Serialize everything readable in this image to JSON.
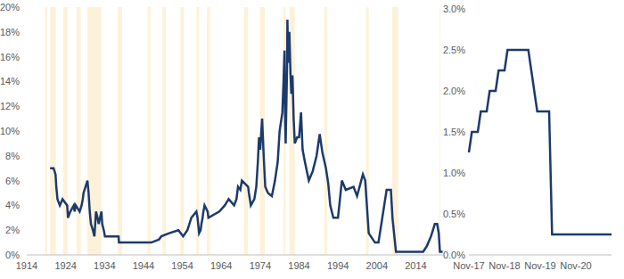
{
  "chart_data": [
    {
      "type": "line",
      "x": [
        1920.0,
        1920.9,
        1921.4,
        1921.6,
        1921.9,
        1922.5,
        1923.2,
        1924.4,
        1924.6,
        1925.2,
        1926.1,
        1926.3,
        1926.6,
        1927.6,
        1928.1,
        1928.4,
        1928.6,
        1929.6,
        1929.9,
        1930.0,
        1930.2,
        1930.5,
        1931.0,
        1931.4,
        1931.8,
        1932.2,
        1932.5,
        1933.2,
        1933.4,
        1933.8,
        1934.1,
        1937.6,
        1937.7,
        1946.0,
        1948.0,
        1948.6,
        1950.6,
        1953.0,
        1954.2,
        1955.3,
        1955.8,
        1956.3,
        1957.6,
        1957.9,
        1958.3,
        1958.7,
        1958.9,
        1959.2,
        1959.4,
        1959.7,
        1960.5,
        1960.7,
        1963.5,
        1964.9,
        1965.9,
        1967.3,
        1967.9,
        1968.3,
        1968.9,
        1969.3,
        1970.9,
        1971.1,
        1971.6,
        1972.5,
        1973.0,
        1973.4,
        1973.7,
        1974.0,
        1974.5,
        1974.9,
        1975.3,
        1976.0,
        1977.0,
        1977.8,
        1978.5,
        1979.0,
        1979.7,
        1980.0,
        1980.25,
        1980.4,
        1980.55,
        1980.9,
        1981.0,
        1981.2,
        1981.5,
        1981.8,
        1982.0,
        1982.3,
        1982.6,
        1982.9,
        1983.5,
        1984.0,
        1984.5,
        1984.9,
        1985.5,
        1986.5,
        1987.5,
        1988.5,
        1989.3,
        1990.0,
        1990.9,
        1991.5,
        1992.0,
        1992.8,
        1994.0,
        1995.0,
        1996.0,
        1998.0,
        1998.9,
        2000.4,
        2001.0,
        2001.9,
        2003.5,
        2004.4,
        2006.5,
        2007.6,
        2008.0,
        2008.9,
        2015.9,
        2016.9,
        2017.9,
        2018.9,
        2019.5,
        2019.9,
        2020.2,
        2020.9
      ],
      "values": [
        7,
        7,
        6.5,
        5.5,
        4.5,
        4,
        4.5,
        4,
        3,
        3.5,
        4,
        3.5,
        4,
        3.5,
        4,
        4.5,
        5,
        6,
        5,
        4.5,
        3.5,
        2.5,
        2,
        1.5,
        3.5,
        3,
        2.5,
        3.5,
        2.5,
        2,
        1.5,
        1.5,
        1,
        1,
        1.25,
        1.5,
        1.75,
        2,
        1.5,
        2,
        2.5,
        3,
        3.5,
        3,
        1.75,
        2,
        2.5,
        3,
        3.5,
        4,
        3.5,
        3,
        3.5,
        4,
        4.5,
        4,
        4.5,
        5.5,
        5.25,
        6,
        5.5,
        5,
        4,
        4.5,
        5.5,
        7.5,
        9.5,
        8.5,
        11,
        8,
        5.5,
        5,
        4.75,
        6,
        7.5,
        10,
        11.5,
        14,
        16.5,
        11,
        9,
        15,
        19,
        15.5,
        18,
        14.5,
        13,
        14.5,
        11,
        9,
        9.5,
        9.5,
        11.5,
        8.5,
        7.5,
        6,
        6.75,
        8,
        9.75,
        8.25,
        7,
        5.75,
        4,
        3,
        3,
        6,
        5.25,
        5.5,
        4.75,
        6.5,
        6,
        1.75,
        1,
        1,
        5.25,
        5.25,
        3,
        0.25,
        0.25,
        0.75,
        1.5,
        2.5,
        2.5,
        1.75,
        0.25,
        0.25
      ],
      "color": "#1c3a6b",
      "recessions": [
        [
          1918.7,
          1919.2
        ],
        [
          1920.0,
          1921.5
        ],
        [
          1923.4,
          1924.5
        ],
        [
          1926.8,
          1927.9
        ],
        [
          1929.6,
          1933.2
        ],
        [
          1937.4,
          1938.5
        ],
        [
          1945.1,
          1945.8
        ],
        [
          1948.9,
          1949.8
        ],
        [
          1953.5,
          1954.4
        ],
        [
          1957.6,
          1958.3
        ],
        [
          1960.3,
          1961.1
        ],
        [
          1969.9,
          1970.9
        ],
        [
          1973.9,
          1975.2
        ],
        [
          1980.0,
          1980.5
        ],
        [
          1981.5,
          1982.9
        ],
        [
          1990.5,
          1991.2
        ],
        [
          2001.2,
          2001.9
        ],
        [
          2007.9,
          2009.5
        ],
        [
          2020.1,
          2020.3
        ]
      ],
      "xlim": [
        1914,
        2021
      ],
      "xticks": [
        1914,
        1924,
        1934,
        1944,
        1954,
        1964,
        1974,
        1984,
        1994,
        2004,
        2014
      ],
      "ylim": [
        0,
        20
      ],
      "yticks": [
        {
          "value": 0,
          "label": "0%"
        },
        {
          "value": 2,
          "label": "2%"
        },
        {
          "value": 4,
          "label": "4%"
        },
        {
          "value": 6,
          "label": "6%"
        },
        {
          "value": 8,
          "label": "8%"
        },
        {
          "value": 10,
          "label": "10%"
        },
        {
          "value": 12,
          "label": "12%"
        },
        {
          "value": 14,
          "label": "14%"
        },
        {
          "value": 16,
          "label": "16%"
        },
        {
          "value": 18,
          "label": "18%"
        },
        {
          "value": 20,
          "label": "20%"
        }
      ],
      "grid": false
    },
    {
      "type": "line",
      "categories": [
        "Nov-17",
        null,
        null,
        null,
        null,
        null,
        null,
        null,
        null,
        null,
        null,
        null,
        "Nov-18",
        null,
        null,
        null,
        null,
        null,
        null,
        null,
        null,
        null,
        null,
        null,
        "Nov-19",
        null,
        null,
        null,
        null,
        null,
        null,
        null,
        null,
        null,
        null,
        null,
        "Nov-20",
        null,
        null,
        null,
        null,
        null,
        null,
        null,
        null,
        null,
        null,
        null,
        null
      ],
      "values": [
        1.25,
        1.5,
        1.5,
        1.5,
        1.75,
        1.75,
        1.75,
        2,
        2,
        2,
        2.25,
        2.25,
        2.25,
        2.5,
        2.5,
        2.5,
        2.5,
        2.5,
        2.5,
        2.5,
        2.5,
        2.25,
        2,
        1.75,
        1.75,
        1.75,
        1.75,
        1.75,
        0.25,
        0.25,
        0.25,
        0.25,
        0.25,
        0.25,
        0.25,
        0.25,
        0.25,
        0.25,
        0.25,
        0.25,
        0.25,
        0.25,
        0.25,
        0.25,
        0.25,
        0.25,
        0.25,
        0.25,
        0.25
      ],
      "color": "#1c3a6b",
      "ylim": [
        0,
        3
      ],
      "yticks": [
        {
          "value": 0,
          "label": "0.0%"
        },
        {
          "value": 0.5,
          "label": "0.5%"
        },
        {
          "value": 1,
          "label": "1.0%"
        },
        {
          "value": 1.5,
          "label": "1.5%"
        },
        {
          "value": 2,
          "label": "2.0%"
        },
        {
          "value": 2.5,
          "label": "2.5%"
        },
        {
          "value": 3,
          "label": "3.0%"
        }
      ],
      "grid": false
    }
  ]
}
